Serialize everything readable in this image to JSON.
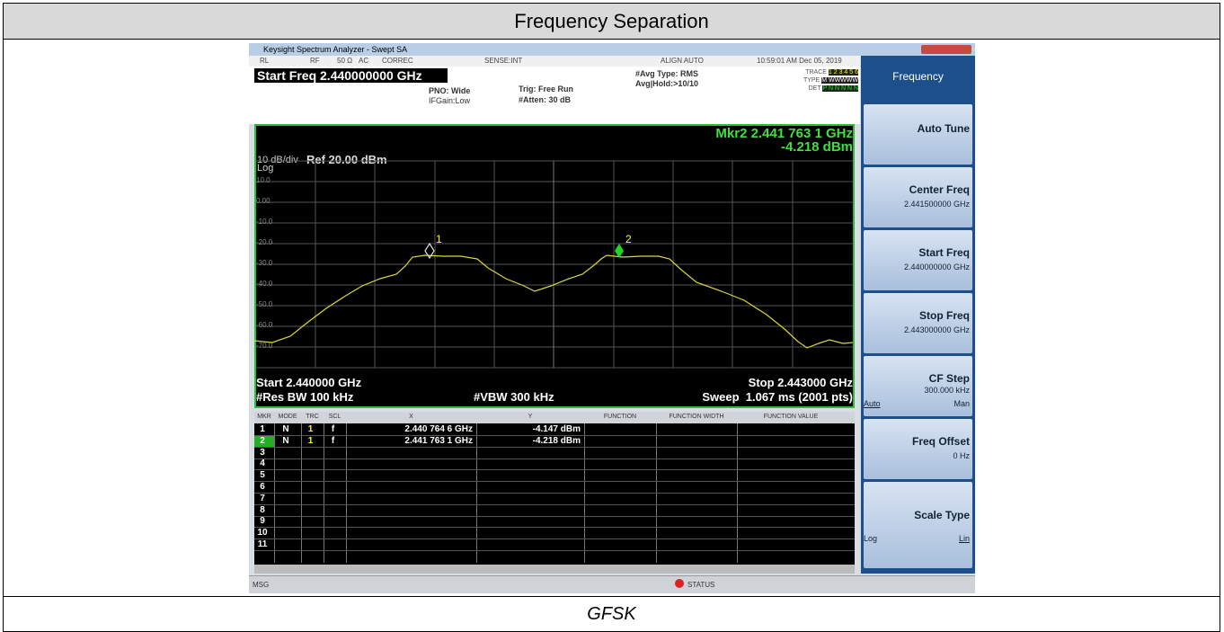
{
  "header": {
    "title": "Frequency Separation"
  },
  "caption": "GFSK",
  "screenshot": {
    "window_title": "Keysight Spectrum Analyzer - Swept SA",
    "status_bar": [
      "RL",
      "RF",
      "50 Ω",
      "AC",
      "CORREC",
      "SENSE:INT",
      "ALIGN AUTO",
      "10:59:01 AM Dec 05, 2019"
    ],
    "start_freq": "Start Freq 2.440000000 GHz",
    "pno": "PNO: Wide",
    "ifgain": "IFGain:Low",
    "trig": "Trig: Free Run",
    "atten": "#Atten: 30 dB",
    "avg_type": "#Avg Type: RMS",
    "avg_hold": "Avg|Hold:>10/10",
    "trace_label": "TRACE",
    "trace_nums": "1 2 3 4 5 6",
    "type_label": "TYPE",
    "type_value": "M WWWWW",
    "det_label": "DET",
    "det_value": "P N N N N N",
    "marker_readout": "Mkr2 2.441 763 1 GHz",
    "marker_level": "-4.218 dBm",
    "scale": "10 dB/div",
    "log": "Log",
    "ref": "Ref 20.00 dBm",
    "y_labels": [
      "10.0",
      "0.00",
      "-10.0",
      "-20.0",
      "-30.0",
      "-40.0",
      "-50.0",
      "-60.0",
      "-70.0"
    ],
    "marker_names": [
      "1",
      "2"
    ],
    "start": "Start 2.440000 GHz",
    "stop": "Stop 2.443000 GHz",
    "rbw": "#Res BW 100 kHz",
    "vbw": "#VBW 300 kHz",
    "sweep": "Sweep  1.067 ms (2001 pts)",
    "marker_table": {
      "columns": [
        "MKR",
        "MODE",
        "TRC",
        "SCL",
        "X",
        "Y",
        "FUNCTION",
        "FUNCTION WIDTH",
        "FUNCTION VALUE"
      ],
      "rows": [
        [
          "1",
          "N",
          "1",
          "f",
          "2.440 764 6 GHz",
          "-4.147 dBm"
        ],
        [
          "2",
          "N",
          "1",
          "f",
          "2.441 763 1 GHz",
          "-4.218 dBm"
        ],
        [
          "3"
        ],
        [
          "4"
        ],
        [
          "5"
        ],
        [
          "6"
        ],
        [
          "7"
        ],
        [
          "8"
        ],
        [
          "9"
        ],
        [
          "10"
        ],
        [
          "11"
        ]
      ]
    },
    "softkeys": {
      "menu": "Frequency",
      "keys": [
        {
          "label": "Auto Tune"
        },
        {
          "label": "Center Freq",
          "value": "2.441500000 GHz"
        },
        {
          "label": "Start Freq",
          "value": "2.440000000 GHz"
        },
        {
          "label": "Stop Freq",
          "value": "2.443000000 GHz"
        },
        {
          "label": "CF Step",
          "value": "300.000 kHz",
          "options": [
            "Auto",
            "Man"
          ]
        },
        {
          "label": "Freq Offset",
          "value": "0 Hz"
        },
        {
          "label": "Scale Type",
          "options": [
            "Log",
            "Lin"
          ]
        }
      ]
    },
    "msg": "MSG",
    "status": "STATUS"
  }
}
